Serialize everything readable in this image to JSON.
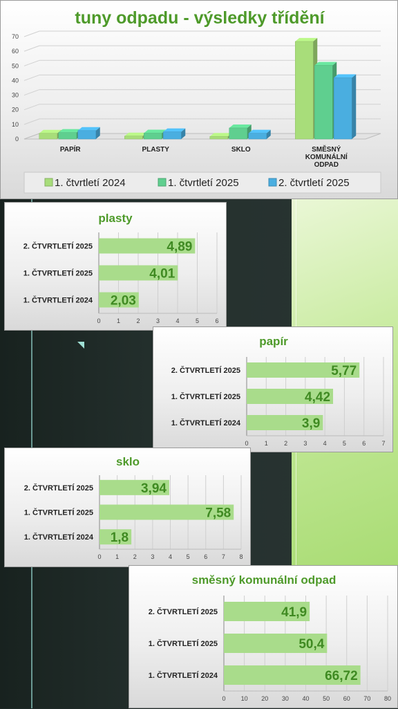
{
  "chart_data": [
    {
      "type": "bar",
      "title": "tuny odpadu - výsledky třídění",
      "categories": [
        "PAPÍR",
        "PLASTY",
        "SKLO",
        "SMĚSNÝ KOMUNÁLNÍ ODPAD"
      ],
      "series": [
        {
          "name": "1. čtvrtletí 2024",
          "values": [
            3.9,
            2.03,
            1.8,
            66.72
          ],
          "color": "#a8dd7a"
        },
        {
          "name": "1. čtvrtletí 2025",
          "values": [
            4.42,
            4.01,
            7.58,
            50.4
          ],
          "color": "#5fcf8f"
        },
        {
          "name": "2. čtvrtletí 2025",
          "values": [
            5.77,
            4.89,
            3.94,
            41.9
          ],
          "color": "#4aaee0"
        }
      ],
      "ylim": [
        0,
        70
      ],
      "yticks": [
        0,
        10,
        20,
        30,
        40,
        50,
        60,
        70
      ],
      "legend": "bottom",
      "grid": true
    },
    {
      "type": "bar",
      "orientation": "horizontal",
      "title": "plasty",
      "categories": [
        "2. ČTVRTLETÍ 2025",
        "1. ČTVRTLETÍ 2025",
        "1. ČTVRTLETÍ 2024"
      ],
      "values": [
        4.89,
        4.01,
        2.03
      ],
      "labels": [
        "4,89",
        "4,01",
        "2,03"
      ],
      "xlim": [
        0,
        6
      ],
      "xticks": [
        0,
        1,
        2,
        3,
        4,
        5,
        6
      ]
    },
    {
      "type": "bar",
      "orientation": "horizontal",
      "title": "papír",
      "categories": [
        "2. ČTVRTLETÍ 2025",
        "1. ČTVRTLETÍ 2025",
        "1. ČTVRTLETÍ 2024"
      ],
      "values": [
        5.77,
        4.42,
        3.9
      ],
      "labels": [
        "5,77",
        "4,42",
        "3,9"
      ],
      "xlim": [
        0,
        7
      ],
      "xticks": [
        0,
        1,
        2,
        3,
        4,
        5,
        6,
        7
      ]
    },
    {
      "type": "bar",
      "orientation": "horizontal",
      "title": "sklo",
      "categories": [
        "2. ČTVRTLETÍ 2025",
        "1. ČTVRTLETÍ 2025",
        "1. ČTVRTLETÍ 2024"
      ],
      "values": [
        3.94,
        7.58,
        1.8
      ],
      "labels": [
        "3,94",
        "7,58",
        "1,8"
      ],
      "xlim": [
        0,
        8
      ],
      "xticks": [
        0,
        1,
        2,
        3,
        4,
        5,
        6,
        7,
        8
      ]
    },
    {
      "type": "bar",
      "orientation": "horizontal",
      "title": "směsný komunální odpad",
      "categories": [
        "2. ČTVRTLETÍ 2025",
        "1. ČTVRTLETÍ 2025",
        "1. ČTVRTLETÍ 2024"
      ],
      "values": [
        41.9,
        50.4,
        66.72
      ],
      "labels": [
        "41,9",
        "50,4",
        "66,72"
      ],
      "xlim": [
        0,
        80
      ],
      "xticks": [
        0,
        10,
        20,
        30,
        40,
        50,
        60,
        70,
        80
      ]
    }
  ],
  "colors": {
    "title_green": "#4e9a2a",
    "bar_green": "#a9dc8b",
    "label_green": "#3f8a22",
    "axis_text": "#222222",
    "grid": "#cfcfcf"
  }
}
